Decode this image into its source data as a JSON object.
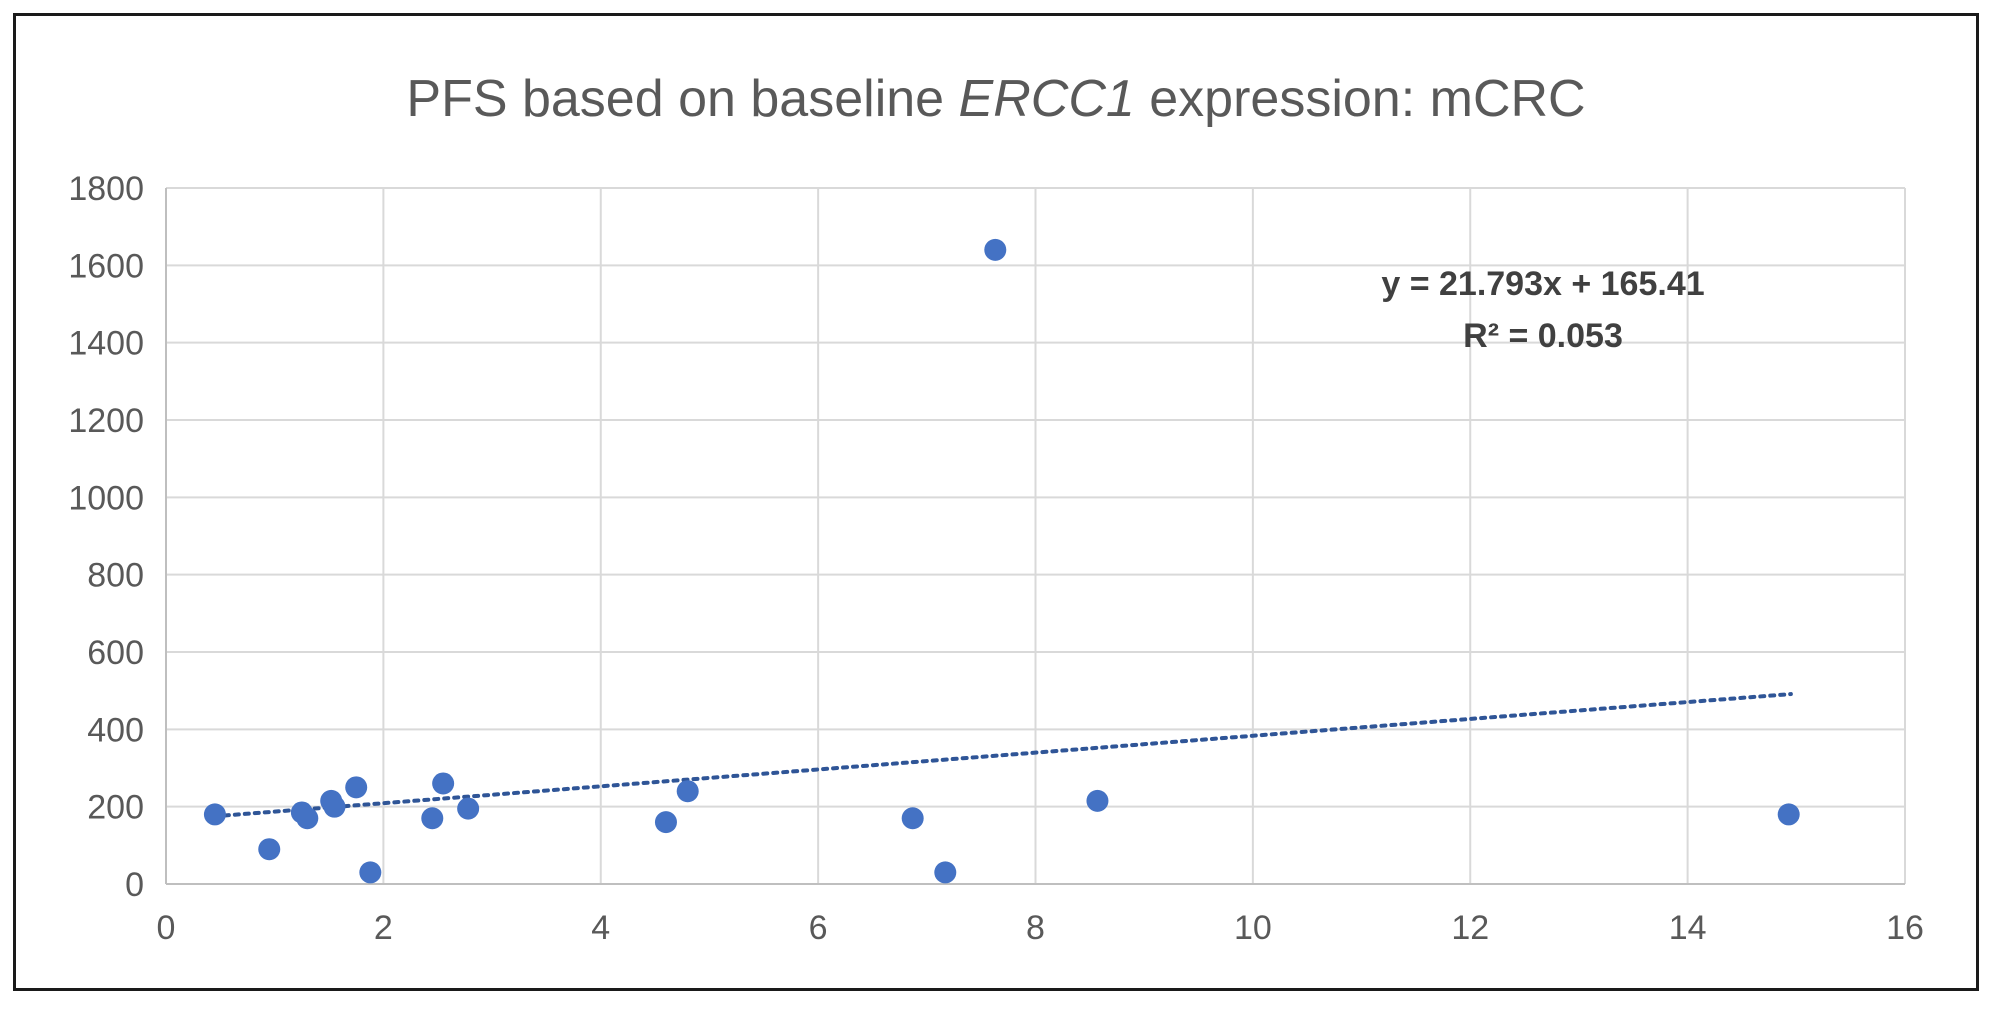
{
  "chart_data": {
    "type": "scatter",
    "title_parts": [
      {
        "text": "PFS based on baseline ",
        "italic": false
      },
      {
        "text": "ERCC1",
        "italic": true
      },
      {
        "text": " expression: mCRC",
        "italic": false
      }
    ],
    "xlabel": "",
    "ylabel": "",
    "xlim": [
      0,
      16
    ],
    "ylim": [
      0,
      1800
    ],
    "x_ticks": [
      "0",
      "2",
      "4",
      "6",
      "8",
      "10",
      "12",
      "14",
      "16"
    ],
    "y_ticks": [
      "0",
      "200",
      "400",
      "600",
      "800",
      "1000",
      "1200",
      "1400",
      "1600",
      "1800"
    ],
    "grid": true,
    "marker_color": "#4472C4",
    "trendline": {
      "type": "linear",
      "slope": 21.793,
      "intercept": 165.41,
      "x_range": [
        0.45,
        14.95
      ],
      "color": "#2F5597",
      "style": "dotted",
      "equation_label": "y = 21.793x + 165.41",
      "r2_label": "R² = 0.053"
    },
    "points": [
      {
        "x": 0.45,
        "y": 180
      },
      {
        "x": 0.95,
        "y": 90
      },
      {
        "x": 1.25,
        "y": 185
      },
      {
        "x": 1.3,
        "y": 170
      },
      {
        "x": 1.52,
        "y": 215
      },
      {
        "x": 1.55,
        "y": 200
      },
      {
        "x": 1.75,
        "y": 250
      },
      {
        "x": 1.88,
        "y": 30
      },
      {
        "x": 2.45,
        "y": 170
      },
      {
        "x": 2.55,
        "y": 260
      },
      {
        "x": 2.78,
        "y": 195
      },
      {
        "x": 4.6,
        "y": 160
      },
      {
        "x": 4.8,
        "y": 240
      },
      {
        "x": 6.87,
        "y": 170
      },
      {
        "x": 7.17,
        "y": 30
      },
      {
        "x": 7.63,
        "y": 1640
      },
      {
        "x": 8.57,
        "y": 215
      },
      {
        "x": 14.93,
        "y": 180
      }
    ]
  }
}
